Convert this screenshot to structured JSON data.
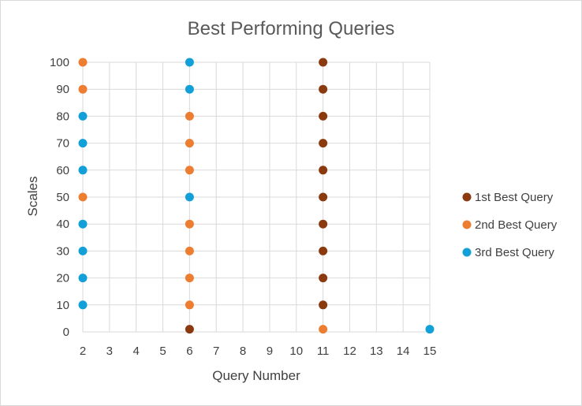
{
  "chart_data": {
    "type": "scatter",
    "title": "Best Performing Queries",
    "xlabel": "Query Number",
    "ylabel": "Scales",
    "xlim": [
      2,
      15
    ],
    "ylim": [
      0,
      100
    ],
    "x_ticks": [
      "2",
      "3",
      "4",
      "5",
      "6",
      "7",
      "8",
      "9",
      "10",
      "11",
      "12",
      "13",
      "14",
      "15"
    ],
    "y_ticks": [
      "0",
      "10",
      "20",
      "30",
      "40",
      "50",
      "60",
      "70",
      "80",
      "90",
      "100"
    ],
    "grid": true,
    "legend_position": "right",
    "series": [
      {
        "name": "1st Best Query",
        "color": "#8b3a0f",
        "points": [
          {
            "x": 6,
            "y": 1
          },
          {
            "x": 11,
            "y": 10
          },
          {
            "x": 11,
            "y": 20
          },
          {
            "x": 11,
            "y": 30
          },
          {
            "x": 11,
            "y": 40
          },
          {
            "x": 11,
            "y": 50
          },
          {
            "x": 11,
            "y": 60
          },
          {
            "x": 11,
            "y": 70
          },
          {
            "x": 11,
            "y": 80
          },
          {
            "x": 11,
            "y": 90
          },
          {
            "x": 11,
            "y": 100
          }
        ]
      },
      {
        "name": "2nd Best Query",
        "color": "#ed7d31",
        "points": [
          {
            "x": 2,
            "y": 50
          },
          {
            "x": 2,
            "y": 90
          },
          {
            "x": 2,
            "y": 100
          },
          {
            "x": 6,
            "y": 10
          },
          {
            "x": 6,
            "y": 20
          },
          {
            "x": 6,
            "y": 30
          },
          {
            "x": 6,
            "y": 40
          },
          {
            "x": 6,
            "y": 60
          },
          {
            "x": 6,
            "y": 70
          },
          {
            "x": 6,
            "y": 80
          },
          {
            "x": 11,
            "y": 1
          }
        ]
      },
      {
        "name": "3rd Best Query",
        "color": "#139fd7",
        "points": [
          {
            "x": 2,
            "y": 10
          },
          {
            "x": 2,
            "y": 20
          },
          {
            "x": 2,
            "y": 30
          },
          {
            "x": 2,
            "y": 40
          },
          {
            "x": 2,
            "y": 60
          },
          {
            "x": 2,
            "y": 70
          },
          {
            "x": 2,
            "y": 80
          },
          {
            "x": 6,
            "y": 50
          },
          {
            "x": 6,
            "y": 90
          },
          {
            "x": 6,
            "y": 100
          },
          {
            "x": 15,
            "y": 1
          }
        ]
      }
    ]
  }
}
